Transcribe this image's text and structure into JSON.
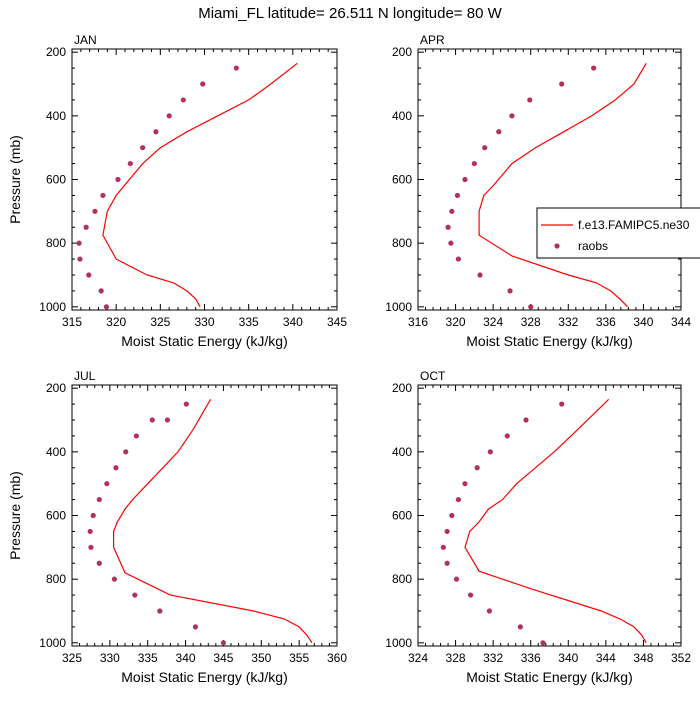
{
  "title": "Miami_FL  latitude= 26.511 N longitude= 80 W",
  "colors": {
    "model": "#ff0000",
    "obs": "#b03060",
    "axis": "#000000"
  },
  "legend": {
    "model_label": "f.e13.FAMIPC5.ne30",
    "obs_label": "raobs"
  },
  "chart_data": [
    {
      "type": "line",
      "title": "JAN",
      "xlabel": "Moist Static Energy (kJ/kg)",
      "ylabel": "Pressure (mb)",
      "xlim": [
        315,
        345
      ],
      "xticks": [
        315,
        320,
        325,
        330,
        335,
        340,
        345
      ],
      "ylim": [
        1010,
        190
      ],
      "yticks": [
        200,
        400,
        600,
        800,
        1000
      ],
      "series": [
        {
          "name": "f.e13.FAMIPC5.ne30",
          "kind": "line",
          "x": [
            329.5,
            329,
            328,
            326.5,
            323.5,
            320,
            318.5,
            319,
            320,
            321.5,
            323,
            325,
            328,
            331.5,
            335,
            337.5,
            340.5
          ],
          "y": [
            1000,
            975,
            950,
            925,
            900,
            850,
            775,
            700,
            650,
            600,
            550,
            500,
            450,
            400,
            350,
            300,
            235
          ]
        },
        {
          "name": "raobs",
          "kind": "scatter",
          "x": [
            318.9,
            318.3,
            316.9,
            315.9,
            315.8,
            316.6,
            317.6,
            318.5,
            320.2,
            321.6,
            323.0,
            324.5,
            326.0,
            327.6,
            329.8,
            333.6
          ],
          "y": [
            1000,
            950,
            900,
            850,
            800,
            750,
            700,
            650,
            600,
            550,
            500,
            450,
            400,
            350,
            300,
            250
          ]
        }
      ]
    },
    {
      "type": "line",
      "title": "APR",
      "xlabel": "Moist Static Energy (kJ/kg)",
      "ylabel": "",
      "xlim": [
        316,
        344
      ],
      "xticks": [
        316,
        320,
        324,
        328,
        332,
        336,
        340,
        344
      ],
      "ylim": [
        1010,
        190
      ],
      "yticks": [
        200,
        400,
        600,
        800,
        1000
      ],
      "series": [
        {
          "name": "f.e13.FAMIPC5.ne30",
          "kind": "line",
          "x": [
            338.3,
            337.5,
            336.5,
            335,
            332,
            326,
            322.5,
            322.5,
            323,
            324,
            326,
            328.5,
            331.5,
            334.5,
            337,
            339,
            340.3
          ],
          "y": [
            1000,
            975,
            950,
            925,
            900,
            840,
            775,
            700,
            650,
            620,
            550,
            500,
            450,
            400,
            350,
            300,
            235
          ]
        },
        {
          "name": "raobs",
          "kind": "scatter",
          "x": [
            328.0,
            325.8,
            322.6,
            320.3,
            319.5,
            319.2,
            319.6,
            320.2,
            321.0,
            322.0,
            323.1,
            324.6,
            326.0,
            327.9,
            331.3,
            334.7
          ],
          "y": [
            1000,
            950,
            900,
            850,
            800,
            750,
            700,
            650,
            600,
            550,
            500,
            450,
            400,
            350,
            300,
            250
          ]
        }
      ]
    },
    {
      "type": "line",
      "title": "JUL",
      "xlabel": "Moist Static Energy (kJ/kg)",
      "ylabel": "Pressure (mb)",
      "xlim": [
        325,
        360
      ],
      "xticks": [
        325,
        330,
        335,
        340,
        345,
        350,
        355,
        360
      ],
      "ylim": [
        1010,
        190
      ],
      "yticks": [
        200,
        400,
        600,
        800,
        1000
      ],
      "series": [
        {
          "name": "f.e13.FAMIPC5.ne30",
          "kind": "line",
          "x": [
            356.7,
            356,
            355,
            353,
            349,
            338,
            332,
            330.5,
            330.5,
            331,
            332,
            333,
            335,
            337,
            339,
            341,
            343.3
          ],
          "y": [
            1000,
            975,
            950,
            925,
            900,
            850,
            780,
            700,
            650,
            620,
            580,
            550,
            500,
            450,
            400,
            330,
            235
          ]
        },
        {
          "name": "raobs",
          "kind": "scatter",
          "x": [
            345.0,
            341.3,
            336.6,
            333.3,
            330.6,
            328.6,
            327.5,
            327.4,
            327.8,
            328.6,
            329.6,
            330.8,
            332.1,
            333.5,
            335.6,
            337.6,
            340.1
          ],
          "y": [
            1000,
            950,
            900,
            850,
            800,
            750,
            700,
            650,
            600,
            550,
            500,
            450,
            400,
            350,
            300,
            300,
            250
          ]
        }
      ]
    },
    {
      "type": "line",
      "title": "OCT",
      "xlabel": "Moist Static Energy (kJ/kg)",
      "ylabel": "",
      "xlim": [
        324,
        352
      ],
      "xticks": [
        324,
        328,
        332,
        336,
        340,
        344,
        348,
        352
      ],
      "ylim": [
        1010,
        190
      ],
      "yticks": [
        200,
        400,
        600,
        800,
        1000
      ],
      "series": [
        {
          "name": "f.e13.FAMIPC5.ne30",
          "kind": "line",
          "x": [
            348.3,
            347.8,
            347,
            345.5,
            343.5,
            336,
            330.5,
            329,
            329.5,
            330.5,
            331.5,
            333,
            334.5,
            336.5,
            338.5,
            341,
            344.3
          ],
          "y": [
            1000,
            975,
            950,
            925,
            900,
            830,
            775,
            700,
            650,
            620,
            580,
            550,
            500,
            450,
            400,
            330,
            235
          ]
        },
        {
          "name": "raobs",
          "kind": "scatter",
          "x": [
            337.3,
            334.9,
            331.6,
            329.6,
            328.1,
            327.1,
            326.7,
            327.1,
            327.6,
            328.3,
            329.0,
            330.3,
            331.7,
            333.5,
            335.5,
            339.3
          ],
          "y": [
            1000,
            950,
            900,
            850,
            800,
            750,
            700,
            650,
            600,
            550,
            500,
            450,
            400,
            350,
            300,
            250
          ]
        }
      ]
    }
  ]
}
